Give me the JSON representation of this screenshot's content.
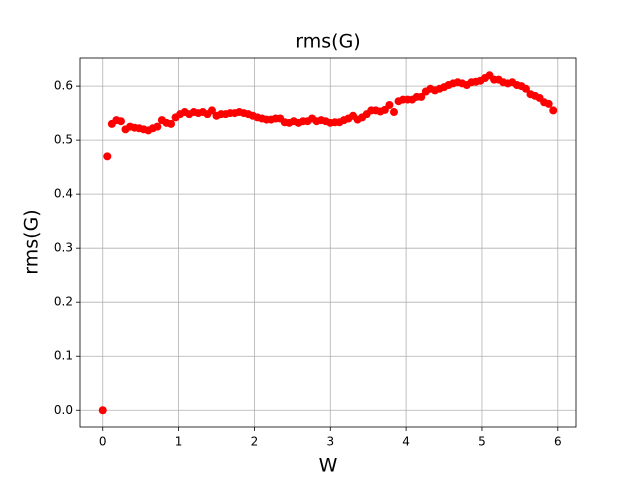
{
  "chart_data": {
    "type": "scatter",
    "title": "rms(G)",
    "x_label": "W",
    "y_label": "rms(G)",
    "color": "#ff0000",
    "grid": true,
    "xlim": [
      -0.3,
      6.24
    ],
    "ylim": [
      -0.031,
      0.652
    ],
    "xticks": [
      0,
      1,
      2,
      3,
      4,
      5,
      6
    ],
    "yticks": [
      {
        "value": 0,
        "label": "0.0"
      },
      0.1,
      0.2,
      0.3,
      0.4,
      0.5,
      0.6
    ],
    "x": [
      0,
      0.06,
      0.12,
      0.18,
      0.24,
      0.3,
      0.36,
      0.42,
      0.48,
      0.54,
      0.6,
      0.66,
      0.72,
      0.78,
      0.84,
      0.9,
      0.96,
      1.02,
      1.08,
      1.14,
      1.2,
      1.26,
      1.32,
      1.38,
      1.44,
      1.5,
      1.56,
      1.62,
      1.68,
      1.74,
      1.8,
      1.86,
      1.92,
      1.98,
      2.04,
      2.1,
      2.16,
      2.22,
      2.28,
      2.34,
      2.4,
      2.46,
      2.52,
      2.58,
      2.64,
      2.7,
      2.76,
      2.82,
      2.88,
      2.94,
      3.0,
      3.06,
      3.12,
      3.18,
      3.24,
      3.3,
      3.36,
      3.42,
      3.48,
      3.54,
      3.6,
      3.66,
      3.72,
      3.78,
      3.84,
      3.9,
      3.96,
      4.02,
      4.08,
      4.14,
      4.2,
      4.26,
      4.32,
      4.38,
      4.44,
      4.5,
      4.56,
      4.62,
      4.68,
      4.74,
      4.8,
      4.86,
      4.92,
      4.98,
      5.04,
      5.1,
      5.16,
      5.22,
      5.28,
      5.34,
      5.4,
      5.46,
      5.52,
      5.58,
      5.64,
      5.7,
      5.76,
      5.82,
      5.88,
      5.94
    ],
    "values": [
      0,
      0.47,
      0.53,
      0.537,
      0.535,
      0.52,
      0.525,
      0.523,
      0.522,
      0.52,
      0.518,
      0.522,
      0.525,
      0.537,
      0.532,
      0.53,
      0.542,
      0.548,
      0.552,
      0.548,
      0.552,
      0.55,
      0.552,
      0.548,
      0.555,
      0.545,
      0.548,
      0.548,
      0.55,
      0.55,
      0.552,
      0.55,
      0.548,
      0.545,
      0.542,
      0.54,
      0.538,
      0.538,
      0.54,
      0.54,
      0.533,
      0.532,
      0.535,
      0.532,
      0.535,
      0.535,
      0.54,
      0.535,
      0.537,
      0.535,
      0.532,
      0.533,
      0.533,
      0.537,
      0.54,
      0.545,
      0.538,
      0.542,
      0.548,
      0.555,
      0.555,
      0.553,
      0.556,
      0.565,
      0.552,
      0.572,
      0.575,
      0.575,
      0.575,
      0.58,
      0.58,
      0.59,
      0.595,
      0.592,
      0.595,
      0.598,
      0.602,
      0.605,
      0.607,
      0.605,
      0.602,
      0.607,
      0.608,
      0.61,
      0.615,
      0.62,
      0.612,
      0.612,
      0.607,
      0.605,
      0.607,
      0.602,
      0.6,
      0.595,
      0.585,
      0.582,
      0.578,
      0.57,
      0.567,
      0.555
    ]
  }
}
